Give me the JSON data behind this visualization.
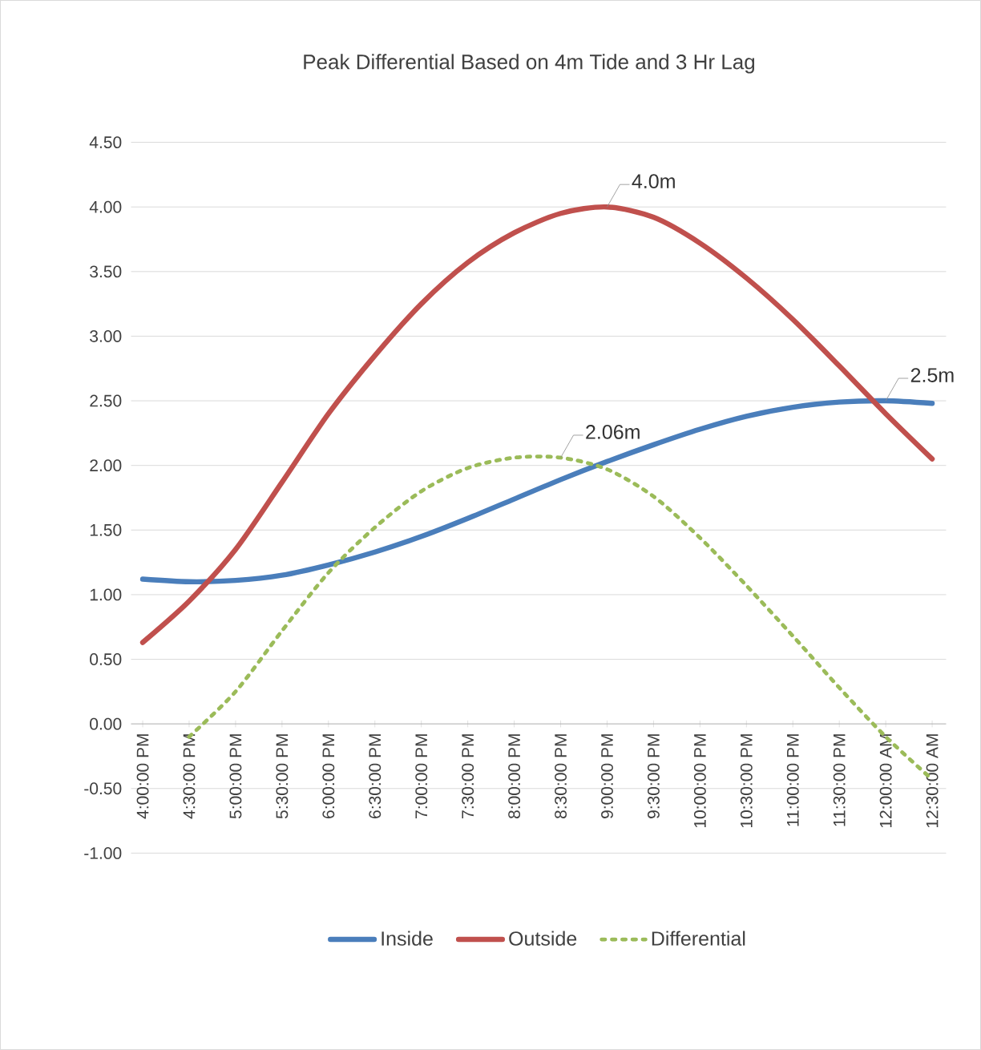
{
  "chart_data": {
    "type": "line",
    "title": "Peak Differential Based on 4m Tide and 3 Hr Lag",
    "categories": [
      "4:00:00 PM",
      "4:30:00 PM",
      "5:00:00 PM",
      "5:30:00 PM",
      "6:00:00 PM",
      "6:30:00 PM",
      "7:00:00 PM",
      "7:30:00 PM",
      "8:00:00 PM",
      "8:30:00 PM",
      "9:00:00 PM",
      "9:30:00 PM",
      "10:00:00 PM",
      "10:30:00 PM",
      "11:00:00 PM",
      "11:30:00 PM",
      "12:00:00 AM",
      "12:30:00 AM"
    ],
    "series": [
      {
        "name": "Inside",
        "color": "#4a7ebb",
        "line_style": "solid",
        "values": [
          1.12,
          1.1,
          1.11,
          1.15,
          1.23,
          1.33,
          1.45,
          1.59,
          1.74,
          1.89,
          2.03,
          2.16,
          2.28,
          2.38,
          2.45,
          2.49,
          2.5,
          2.48
        ]
      },
      {
        "name": "Outside",
        "color": "#c0504d",
        "line_style": "solid",
        "values": [
          0.63,
          0.95,
          1.35,
          1.87,
          2.4,
          2.85,
          3.25,
          3.57,
          3.8,
          3.95,
          4.0,
          3.92,
          3.72,
          3.45,
          3.13,
          2.77,
          2.4,
          2.05
        ]
      },
      {
        "name": "Differential",
        "color": "#9bbb59",
        "line_style": "dotted",
        "values": [
          null,
          -0.1,
          0.25,
          0.72,
          1.17,
          1.52,
          1.8,
          1.98,
          2.06,
          2.06,
          1.97,
          1.76,
          1.44,
          1.07,
          0.68,
          0.28,
          -0.1,
          -0.43
        ]
      }
    ],
    "ylim": [
      -1,
      4.5
    ],
    "yticks": [
      {
        "value": -1,
        "label": "-1.00"
      },
      {
        "value": -0.5,
        "label": "-0.50"
      },
      {
        "value": 0,
        "label": "0.00"
      },
      {
        "value": 0.5,
        "label": "0.50"
      },
      {
        "value": 1,
        "label": "1.00"
      },
      {
        "value": 1.5,
        "label": "1.50"
      },
      {
        "value": 2,
        "label": "2.00"
      },
      {
        "value": 2.5,
        "label": "2.50"
      },
      {
        "value": 3,
        "label": "3.00"
      },
      {
        "value": 3.5,
        "label": "3.50"
      },
      {
        "value": 4,
        "label": "4.00"
      },
      {
        "value": 4.5,
        "label": "4.50"
      }
    ],
    "annotations": [
      {
        "text": "4.0m",
        "x": "9:00:00 PM",
        "y": 4.0
      },
      {
        "text": "2.06m",
        "x": "8:30:00 PM",
        "y": 2.06
      },
      {
        "text": "2.5m",
        "x": "12:00:00 AM",
        "y": 2.5
      }
    ],
    "grid": "y",
    "legend": "bottom",
    "marker": "none"
  }
}
